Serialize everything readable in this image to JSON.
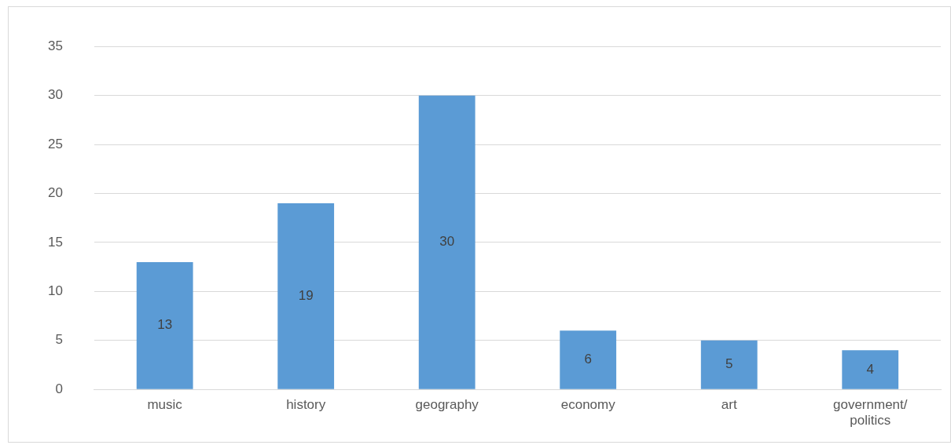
{
  "chart_data": {
    "type": "bar",
    "categories": [
      "music",
      "history",
      "geography",
      "economy",
      "art",
      "government/ politics"
    ],
    "values": [
      13,
      19,
      30,
      6,
      5,
      4
    ],
    "color": "#5b9bd5",
    "ylim": [
      0,
      35
    ],
    "yticks": [
      0,
      5,
      10,
      15,
      20,
      25,
      30,
      35
    ],
    "grid": "y",
    "data_labels": true,
    "legend": false
  }
}
